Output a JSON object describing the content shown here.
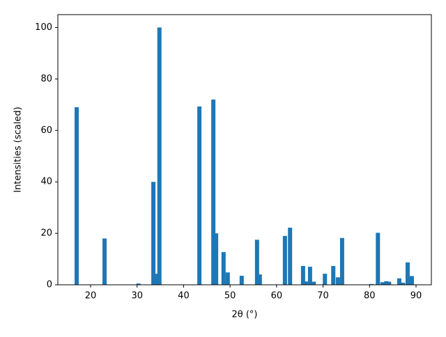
{
  "chart_data": {
    "type": "bar",
    "xlabel": "2θ (°)",
    "ylabel": "Intensities (scaled)",
    "color": "#1f77b4",
    "x": [
      17.0,
      23.0,
      30.3,
      33.5,
      34.2,
      34.8,
      43.4,
      46.4,
      47.0,
      48.6,
      49.5,
      52.5,
      55.8,
      56.4,
      61.8,
      62.9,
      65.7,
      66.3,
      67.2,
      68.0,
      70.4,
      72.2,
      73.2,
      74.1,
      80.4,
      81.8,
      82.8,
      83.6,
      84.2,
      86.4,
      87.2,
      88.2,
      89.1
    ],
    "values": [
      69,
      18,
      0.5,
      40,
      4.3,
      100,
      69.3,
      72,
      20,
      12.7,
      4.8,
      3.5,
      17.5,
      4,
      19,
      22.2,
      7.3,
      1.3,
      7,
      1.2,
      4.3,
      7.3,
      2.9,
      18.2,
      0.3,
      20.2,
      1,
      1.4,
      1.2,
      2.5,
      0.8,
      8.7,
      3.4
    ],
    "xlim": [
      12.95,
      93.3
    ],
    "ylim": [
      0,
      105
    ],
    "xticks": [
      20,
      30,
      40,
      50,
      60,
      70,
      80,
      90
    ],
    "yticks": [
      0,
      20,
      40,
      60,
      80,
      100
    ]
  }
}
